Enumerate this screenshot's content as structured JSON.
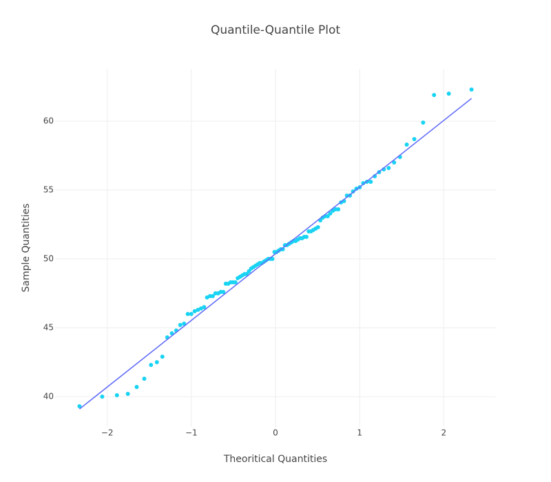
{
  "chart_data": {
    "type": "scatter",
    "title": "Quantile-Quantile Plot",
    "x_label": "Theoritical Quantities",
    "y_label": "Sample Quantities",
    "xlim": [
      -2.62,
      2.62
    ],
    "ylim": [
      37.8,
      63.8
    ],
    "xticks": [
      {
        "value": -2,
        "label": "−2"
      },
      {
        "value": -1,
        "label": "−1"
      },
      0,
      1,
      2
    ],
    "yticks": [
      40,
      45,
      50,
      55,
      60
    ],
    "grid": true,
    "series": [
      {
        "mode": "markers",
        "color": "#19d3f3",
        "x": [
          -2.33,
          -2.06,
          -1.885,
          -1.755,
          -1.65,
          -1.56,
          -1.48,
          -1.41,
          -1.345,
          -1.287,
          -1.232,
          -1.18,
          -1.132,
          -1.087,
          -1.043,
          -1.001,
          -0.961,
          -0.922,
          -0.885,
          -0.849,
          -0.814,
          -0.779,
          -0.746,
          -0.714,
          -0.682,
          -0.651,
          -0.621,
          -0.591,
          -0.562,
          -0.533,
          -0.505,
          -0.477,
          -0.449,
          -0.422,
          -0.395,
          -0.368,
          -0.342,
          -0.316,
          -0.29,
          -0.264,
          -0.239,
          -0.213,
          -0.188,
          -0.162,
          -0.137,
          -0.112,
          -0.087,
          -0.062,
          -0.037,
          -0.012,
          0.012,
          0.037,
          0.062,
          0.087,
          0.112,
          0.137,
          0.162,
          0.188,
          0.213,
          0.239,
          0.264,
          0.29,
          0.316,
          0.342,
          0.368,
          0.395,
          0.422,
          0.449,
          0.477,
          0.505,
          0.533,
          0.562,
          0.591,
          0.621,
          0.651,
          0.682,
          0.714,
          0.746,
          0.779,
          0.814,
          0.849,
          0.885,
          0.922,
          0.961,
          1.001,
          1.043,
          1.087,
          1.132,
          1.18,
          1.232,
          1.287,
          1.345,
          1.41,
          1.48,
          1.56,
          1.65,
          1.755,
          1.885,
          2.06,
          2.33
        ],
        "values": [
          39.3,
          40.0,
          40.1,
          40.2,
          40.7,
          41.3,
          42.3,
          42.5,
          42.9,
          44.3,
          44.6,
          44.8,
          45.2,
          45.3,
          46.0,
          46.0,
          46.2,
          46.3,
          46.4,
          46.5,
          47.2,
          47.3,
          47.3,
          47.5,
          47.5,
          47.6,
          47.6,
          48.2,
          48.2,
          48.3,
          48.3,
          48.3,
          48.6,
          48.7,
          48.8,
          48.9,
          48.9,
          49.1,
          49.3,
          49.4,
          49.5,
          49.6,
          49.7,
          49.7,
          49.8,
          49.9,
          50.0,
          50.0,
          50.0,
          50.5,
          50.5,
          50.6,
          50.7,
          50.7,
          51.0,
          51.0,
          51.1,
          51.2,
          51.3,
          51.3,
          51.4,
          51.5,
          51.5,
          51.6,
          51.6,
          52.0,
          52.0,
          52.1,
          52.2,
          52.3,
          52.8,
          53.0,
          53.1,
          53.1,
          53.3,
          53.5,
          53.6,
          53.6,
          54.1,
          54.2,
          54.6,
          54.6,
          54.9,
          55.1,
          55.2,
          55.5,
          55.6,
          55.6,
          56.0,
          56.3,
          56.5,
          56.6,
          57.0,
          57.4,
          58.3,
          58.7,
          59.9,
          61.9,
          62.0,
          62.3
        ]
      },
      {
        "mode": "lines",
        "color": "#636efa",
        "x": [
          -2.33,
          2.33
        ],
        "values": [
          39.1,
          61.65
        ]
      }
    ]
  }
}
